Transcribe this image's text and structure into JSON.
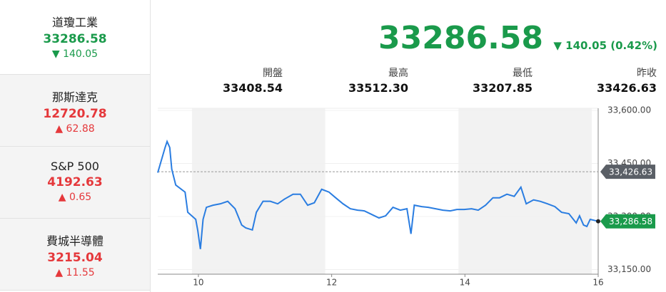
{
  "sidebar": [
    {
      "name": "道瓊工業",
      "price": "33286.58",
      "change": "▼ 140.05",
      "color": "#1a9a4b"
    },
    {
      "name": "那斯達克",
      "price": "12720.78",
      "change": "▲ 62.88",
      "color": "#e5383b"
    },
    {
      "name": "S&P 500",
      "price": "4192.63",
      "change": "▲ 0.65",
      "color": "#e5383b"
    },
    {
      "name": "費城半導體",
      "price": "3215.04",
      "change": "▲ 11.55",
      "color": "#e5383b"
    }
  ],
  "quote": {
    "price": "33286.58",
    "change": "▼ 140.05 (0.42%)",
    "color": "#1a9a4b",
    "stats": [
      {
        "label": "開盤",
        "value": "33408.54"
      },
      {
        "label": "最高",
        "value": "33512.30"
      },
      {
        "label": "最低",
        "value": "33207.85"
      },
      {
        "label": "昨收",
        "value": "33426.63"
      }
    ]
  },
  "chart_data": {
    "type": "line",
    "x": [
      9.39,
      9.5,
      9.53,
      9.57,
      9.6,
      9.66,
      9.8,
      9.84,
      9.96,
      9.99,
      10.03,
      10.07,
      10.12,
      10.22,
      10.33,
      10.44,
      10.55,
      10.65,
      10.71,
      10.81,
      10.87,
      10.97,
      11.08,
      11.19,
      11.29,
      11.42,
      11.53,
      11.64,
      11.74,
      11.85,
      11.96,
      12.06,
      12.17,
      12.28,
      12.39,
      12.49,
      12.6,
      12.71,
      12.81,
      12.92,
      13.03,
      13.13,
      13.19,
      13.24,
      13.35,
      13.45,
      13.56,
      13.67,
      13.78,
      13.88,
      13.99,
      14.1,
      14.2,
      14.31,
      14.42,
      14.52,
      14.63,
      14.74,
      14.84,
      14.92,
      15.03,
      15.13,
      15.24,
      15.35,
      15.45,
      15.56,
      15.67,
      15.72,
      15.78,
      15.83,
      15.88,
      16.0
    ],
    "series": [
      {
        "name": "道瓊工業",
        "color": "#2a7de1",
        "values": [
          33424,
          33495,
          33512,
          33495,
          33434,
          33389,
          33369,
          33312,
          33292,
          33261,
          33208,
          33292,
          33326,
          33332,
          33336,
          33343,
          33322,
          33276,
          33268,
          33262,
          33312,
          33343,
          33343,
          33336,
          33349,
          33363,
          33363,
          33332,
          33339,
          33377,
          33369,
          33353,
          33336,
          33322,
          33318,
          33316,
          33306,
          33296,
          33302,
          33326,
          33318,
          33322,
          33251,
          33332,
          33328,
          33326,
          33322,
          33318,
          33316,
          33320,
          33320,
          33322,
          33318,
          33332,
          33353,
          33353,
          33363,
          33357,
          33383,
          33336,
          33347,
          33343,
          33336,
          33328,
          33312,
          33308,
          33282,
          33302,
          33276,
          33272,
          33292,
          33286.58
        ]
      }
    ],
    "xlim": [
      9.39,
      16.0
    ],
    "xticks": [
      10,
      12,
      14,
      16
    ],
    "ylim": [
      33137,
      33606
    ],
    "yticks": [
      {
        "value": 33150,
        "label": "33,150.00"
      },
      {
        "value": 33300,
        "label": "33,300.00"
      },
      {
        "value": 33450,
        "label": "33,450.00"
      },
      {
        "value": 33600,
        "label": "33,600.00"
      }
    ],
    "markers": [
      {
        "value": 33426.63,
        "label": "33,426.63",
        "color": "#5a5f66"
      },
      {
        "value": 33286.58,
        "label": "33,286.58",
        "color": "#1a9a4b"
      }
    ]
  }
}
